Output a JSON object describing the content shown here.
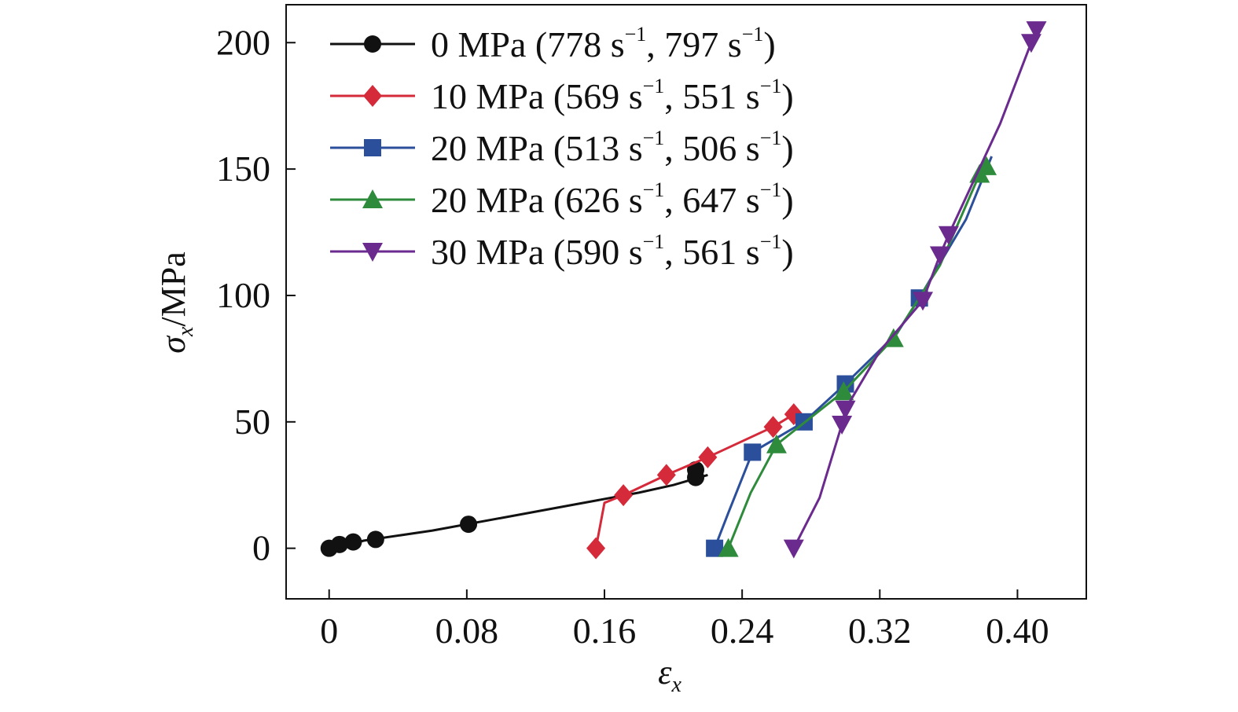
{
  "chart_data": {
    "type": "line",
    "xlabel": {
      "symbol": "ε",
      "sub": "x"
    },
    "ylabel": {
      "symbol": "σ",
      "sub": "x",
      "unit": "/MPa"
    },
    "xlim": [
      -0.025,
      0.44
    ],
    "ylim": [
      -20,
      215
    ],
    "xticks": [
      0,
      0.08,
      0.16,
      0.24,
      0.32,
      0.4
    ],
    "xtick_labels": [
      "0",
      "0.08",
      "0.16",
      "0.24",
      "0.32",
      "0.40"
    ],
    "yticks": [
      0,
      50,
      100,
      150,
      200
    ],
    "ytick_labels": [
      "0",
      "50",
      "100",
      "150",
      "200"
    ],
    "grid": false,
    "legend_position": "top-left",
    "series": [
      {
        "name": "0 MPa (778 s⁻¹, 797 s⁻¹)",
        "legend": {
          "main": "0 MPa (778 s",
          "r1": "797 s"
        },
        "color": "#111111",
        "marker": "circle",
        "points": [
          [
            0,
            0
          ],
          [
            0.006,
            1.5
          ],
          [
            0.014,
            2.5
          ],
          [
            0.027,
            3.5
          ],
          [
            0.081,
            9.5
          ],
          [
            0.213,
            28
          ],
          [
            0.213,
            31
          ]
        ],
        "line": [
          [
            0,
            -1
          ],
          [
            0.02,
            3
          ],
          [
            0.06,
            7
          ],
          [
            0.1,
            12
          ],
          [
            0.14,
            17
          ],
          [
            0.18,
            22
          ],
          [
            0.2,
            25
          ],
          [
            0.22,
            29
          ]
        ]
      },
      {
        "name": "10 MPa (569 s⁻¹, 551 s⁻¹)",
        "legend": {
          "main": "10 MPa (569 s",
          "r1": "551 s"
        },
        "color": "#d42a3a",
        "marker": "diamond",
        "points": [
          [
            0.155,
            0
          ],
          [
            0.171,
            21
          ],
          [
            0.196,
            29
          ],
          [
            0.22,
            36
          ],
          [
            0.258,
            48
          ],
          [
            0.27,
            53
          ]
        ],
        "line": [
          [
            0.155,
            0
          ],
          [
            0.16,
            18
          ],
          [
            0.171,
            21
          ],
          [
            0.196,
            29
          ],
          [
            0.22,
            36
          ],
          [
            0.258,
            48
          ],
          [
            0.27,
            53
          ]
        ]
      },
      {
        "name": "20 MPa (513 s⁻¹, 506 s⁻¹)",
        "legend": {
          "main": "20 MPa (513 s",
          "r1": "506 s"
        },
        "color": "#2b4f9a",
        "marker": "square",
        "points": [
          [
            0.224,
            0
          ],
          [
            0.246,
            38
          ],
          [
            0.276,
            50
          ],
          [
            0.3,
            65
          ],
          [
            0.343,
            99
          ]
        ],
        "line": [
          [
            0.224,
            0
          ],
          [
            0.232,
            14
          ],
          [
            0.246,
            38
          ],
          [
            0.276,
            50
          ],
          [
            0.3,
            65
          ],
          [
            0.33,
            85
          ],
          [
            0.343,
            99
          ],
          [
            0.37,
            130
          ],
          [
            0.385,
            155
          ]
        ]
      },
      {
        "name": "20 MPa (626 s⁻¹, 647 s⁻¹)",
        "legend": {
          "main": "20 MPa (626 s",
          "r1": "647 s"
        },
        "color": "#2e8b3c",
        "marker": "triangle-up",
        "points": [
          [
            0.232,
            0
          ],
          [
            0.26,
            41
          ],
          [
            0.299,
            62
          ],
          [
            0.328,
            83
          ],
          [
            0.378,
            148
          ],
          [
            0.382,
            151
          ]
        ],
        "line": [
          [
            0.232,
            0
          ],
          [
            0.245,
            22
          ],
          [
            0.26,
            41
          ],
          [
            0.299,
            62
          ],
          [
            0.328,
            83
          ],
          [
            0.355,
            112
          ],
          [
            0.378,
            148
          ],
          [
            0.382,
            151
          ]
        ]
      },
      {
        "name": "30 MPa (590 s⁻¹, 561 s⁻¹)",
        "legend": {
          "main": "30 MPa (590 s",
          "r1": "561 s"
        },
        "color": "#6a2a8e",
        "marker": "triangle-down",
        "points": [
          [
            0.27,
            0
          ],
          [
            0.298,
            49
          ],
          [
            0.3,
            55
          ],
          [
            0.345,
            98
          ],
          [
            0.355,
            116
          ],
          [
            0.36,
            124
          ],
          [
            0.408,
            200
          ],
          [
            0.411,
            205
          ]
        ],
        "line": [
          [
            0.27,
            0
          ],
          [
            0.285,
            20
          ],
          [
            0.298,
            49
          ],
          [
            0.3,
            55
          ],
          [
            0.32,
            78
          ],
          [
            0.345,
            98
          ],
          [
            0.355,
            116
          ],
          [
            0.36,
            124
          ],
          [
            0.39,
            168
          ],
          [
            0.408,
            200
          ],
          [
            0.411,
            205
          ]
        ]
      }
    ],
    "legend_superscript": "−1"
  }
}
